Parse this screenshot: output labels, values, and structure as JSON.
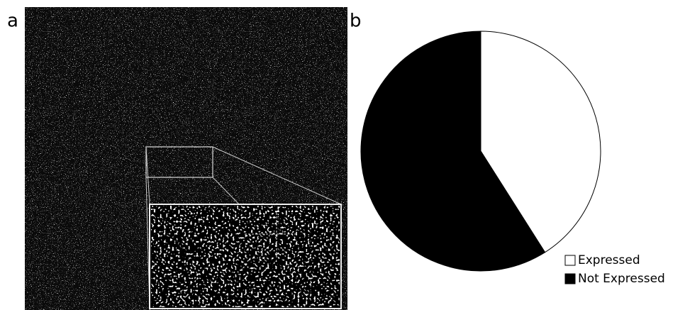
{
  "panels": {
    "a": "a",
    "b": "b"
  },
  "chart_data": {
    "type": "pie",
    "categories": [
      "Expressed",
      "Not Expressed"
    ],
    "values": [
      41,
      59
    ],
    "colors": [
      "#ffffff",
      "#000000"
    ]
  }
}
